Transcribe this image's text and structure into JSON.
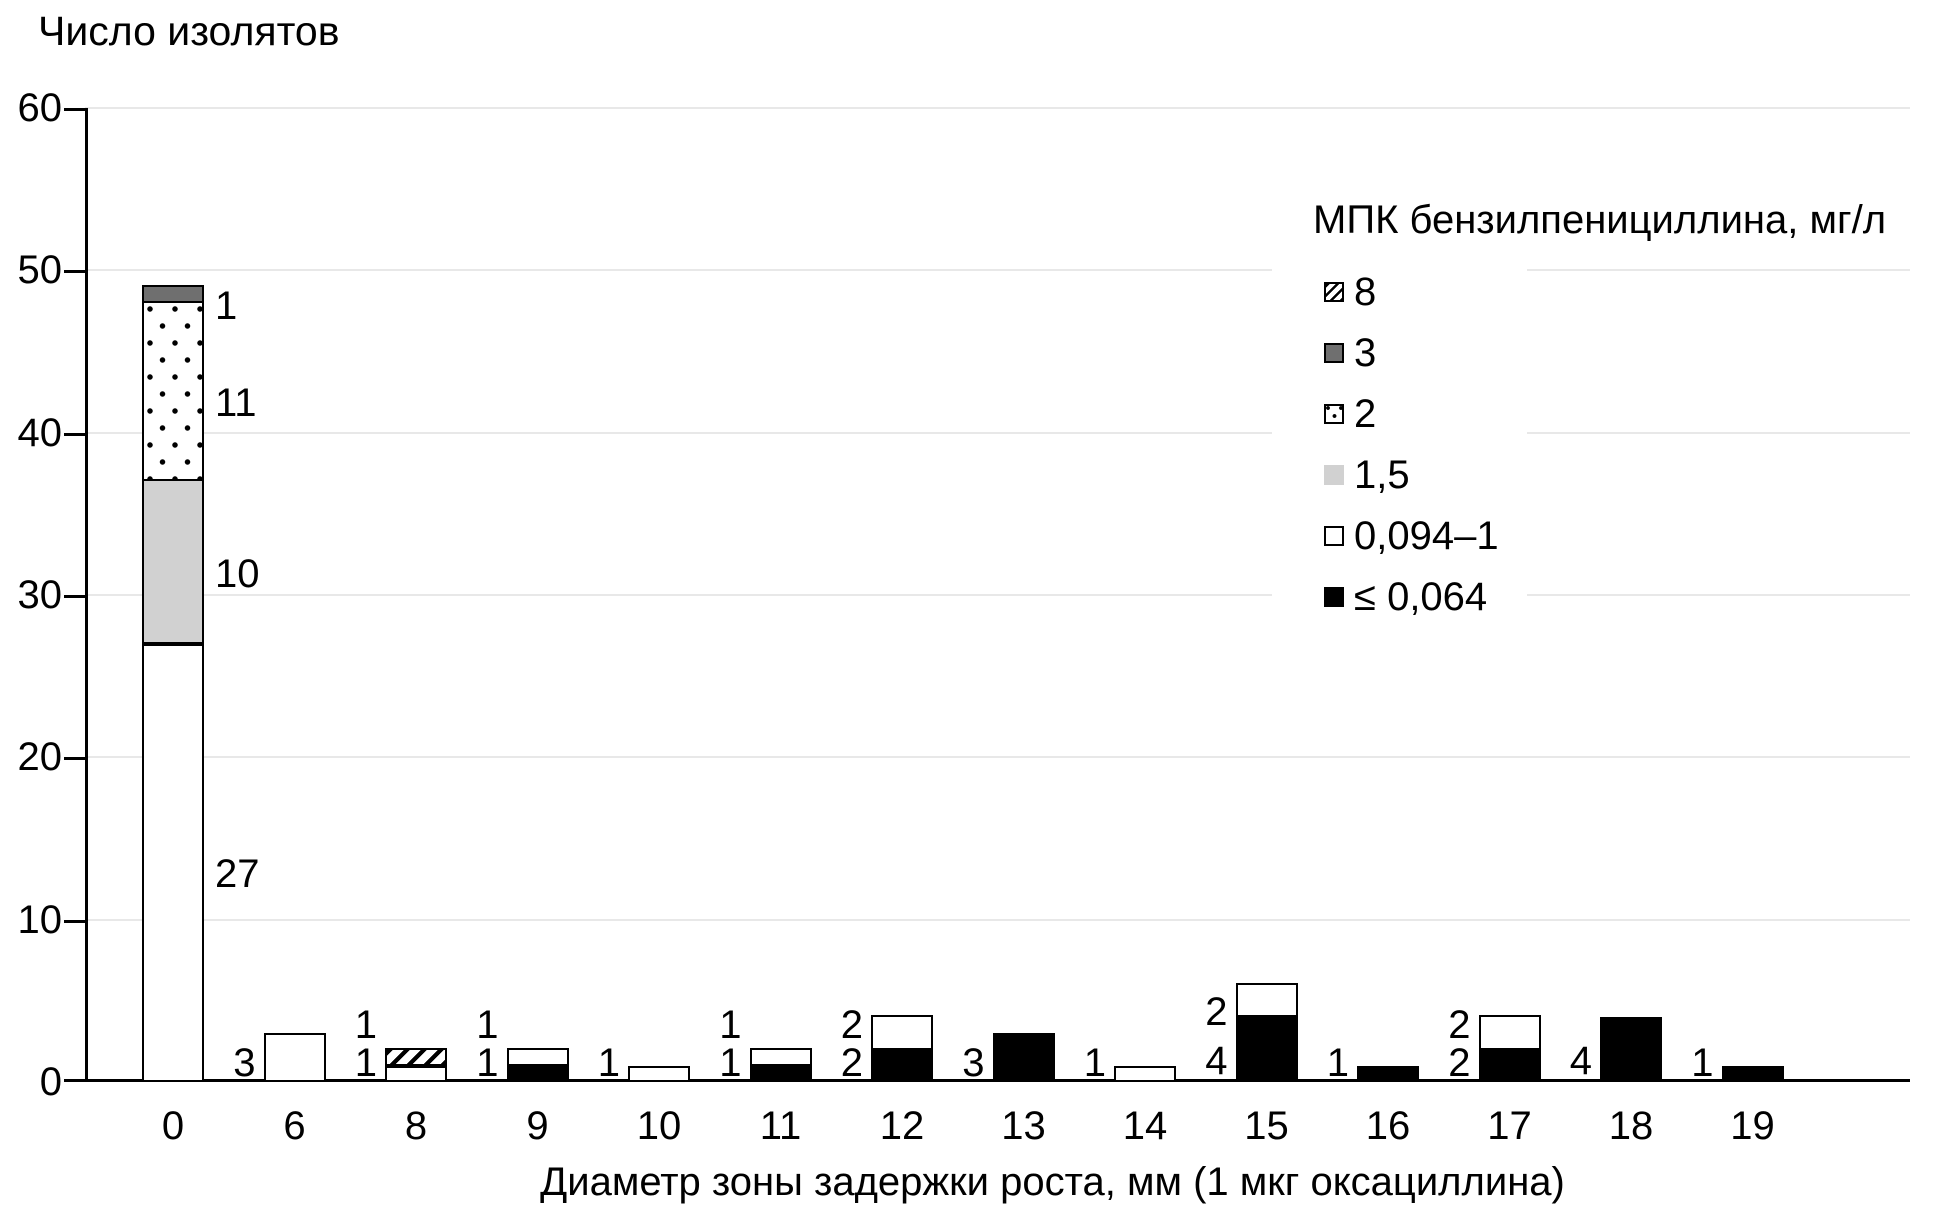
{
  "title": "Число изолятов",
  "x_axis_label": "Диаметр зоны задержки роста, мм (1 мкг оксациллина)",
  "legend": {
    "title": "МПК бензилпенициллина, мг/л",
    "items": [
      {
        "label": "8",
        "pattern": "hatch"
      },
      {
        "label": "3",
        "pattern": "darkgray"
      },
      {
        "label": "2",
        "pattern": "dots"
      },
      {
        "label": "1,5",
        "pattern": "lightgray"
      },
      {
        "label": "0,094–1",
        "pattern": "white"
      },
      {
        "label": "≤ 0,064",
        "pattern": "black"
      }
    ]
  },
  "colors": {
    "dark_gray": "#6f6f6f",
    "light_gray": "#d1d1d1",
    "gridline": "#e8e8e8",
    "bar_border": "#000000",
    "background": "#ffffff"
  },
  "chart_data": {
    "type": "bar",
    "stacked": true,
    "title": "Число изолятов",
    "xlabel": "Диаметр зоны задержки роста, мм (1 мкг оксациллина)",
    "ylabel": "Число изолятов",
    "ylim": [
      0,
      60
    ],
    "yticks": [
      0,
      10,
      20,
      30,
      40,
      50,
      60
    ],
    "grid": true,
    "legend_position": "top-right",
    "categories": [
      "0",
      "6",
      "8",
      "9",
      "10",
      "11",
      "12",
      "13",
      "14",
      "15",
      "16",
      "17",
      "18",
      "19"
    ],
    "series": [
      {
        "name": "≤ 0,064",
        "pattern": "black",
        "values": [
          0,
          0,
          0,
          1,
          0,
          1,
          2,
          3,
          0,
          4,
          1,
          2,
          4,
          1
        ]
      },
      {
        "name": "0,094–1",
        "pattern": "white",
        "values": [
          27,
          3,
          1,
          1,
          1,
          1,
          2,
          0,
          1,
          2,
          0,
          2,
          0,
          0
        ]
      },
      {
        "name": "1,5",
        "pattern": "lightgray",
        "values": [
          10,
          0,
          0,
          0,
          0,
          0,
          0,
          0,
          0,
          0,
          0,
          0,
          0,
          0
        ]
      },
      {
        "name": "2",
        "pattern": "dots",
        "values": [
          11,
          0,
          0,
          0,
          0,
          0,
          0,
          0,
          0,
          0,
          0,
          0,
          0,
          0
        ]
      },
      {
        "name": "3",
        "pattern": "darkgray",
        "values": [
          1,
          0,
          0,
          0,
          0,
          0,
          0,
          0,
          0,
          0,
          0,
          0,
          0,
          0
        ]
      },
      {
        "name": "8",
        "pattern": "hatch",
        "values": [
          0,
          0,
          1,
          0,
          0,
          0,
          0,
          0,
          0,
          0,
          0,
          0,
          0,
          0
        ]
      }
    ],
    "label_side_by_category": [
      "right",
      "left",
      "left",
      "left",
      "left",
      "left",
      "left",
      "left",
      "left",
      "left",
      "left",
      "left",
      "left",
      "left"
    ]
  }
}
